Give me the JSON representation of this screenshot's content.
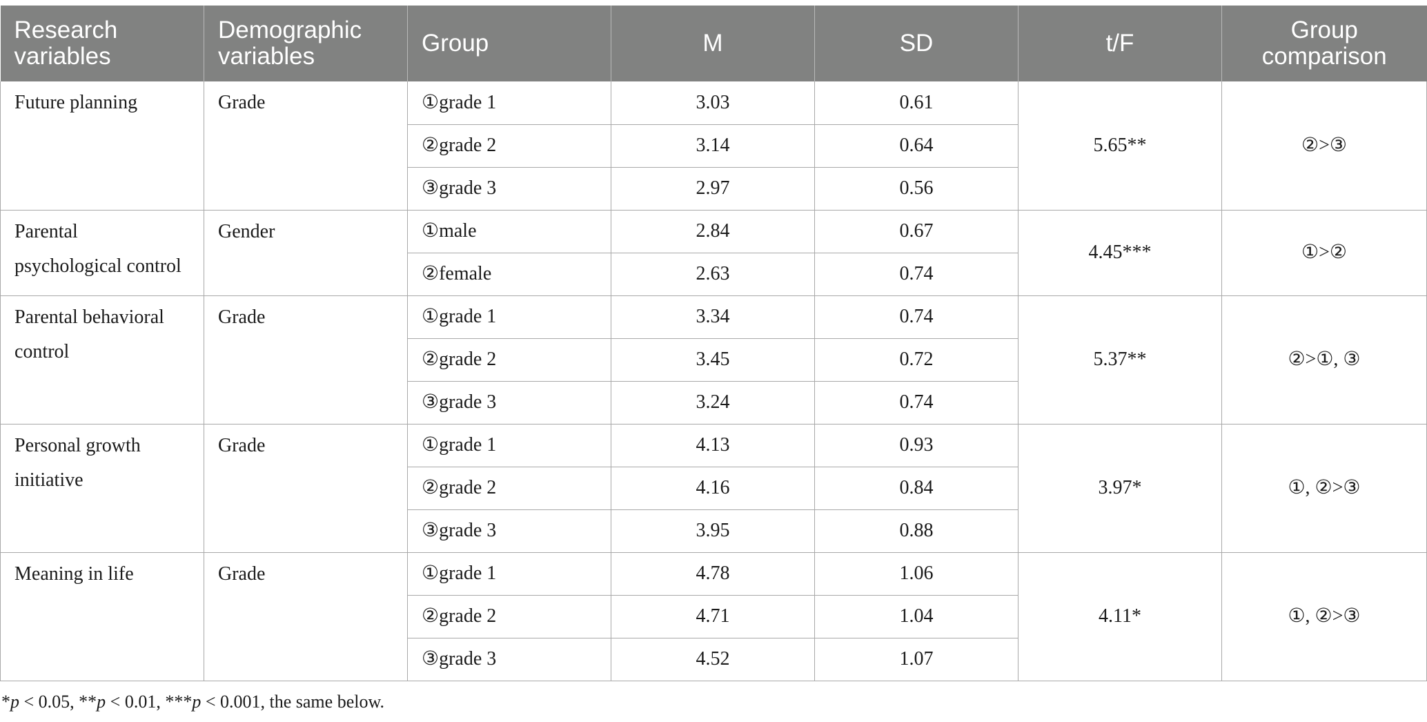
{
  "table": {
    "headers": [
      "Research variables",
      "Demographic variables",
      "Group",
      "M",
      "SD",
      "t/F",
      "Group comparison"
    ],
    "blocks": [
      {
        "variable": "Future planning",
        "demographic": "Grade",
        "tf": "5.65**",
        "comparison": "②>③",
        "rows": [
          {
            "group": "①grade 1",
            "m": "3.03",
            "sd": "0.61"
          },
          {
            "group": "②grade 2",
            "m": "3.14",
            "sd": "0.64"
          },
          {
            "group": "③grade 3",
            "m": "2.97",
            "sd": "0.56"
          }
        ]
      },
      {
        "variable": "Parental psychological control",
        "demographic": "Gender",
        "tf": "4.45***",
        "comparison": "①>②",
        "rows": [
          {
            "group": "①male",
            "m": "2.84",
            "sd": "0.67"
          },
          {
            "group": "②female",
            "m": "2.63",
            "sd": "0.74"
          }
        ]
      },
      {
        "variable": "Parental behavioral control",
        "demographic": "Grade",
        "tf": "5.37**",
        "comparison": "②>①, ③",
        "rows": [
          {
            "group": "①grade 1",
            "m": "3.34",
            "sd": "0.74"
          },
          {
            "group": "②grade 2",
            "m": "3.45",
            "sd": "0.72"
          },
          {
            "group": "③grade 3",
            "m": "3.24",
            "sd": "0.74"
          }
        ]
      },
      {
        "variable": "Personal growth initiative",
        "demographic": "Grade",
        "tf": "3.97*",
        "comparison": "①, ②>③",
        "rows": [
          {
            "group": "①grade 1",
            "m": "4.13",
            "sd": "0.93"
          },
          {
            "group": "②grade 2",
            "m": "4.16",
            "sd": "0.84"
          },
          {
            "group": "③grade 3",
            "m": "3.95",
            "sd": "0.88"
          }
        ]
      },
      {
        "variable": "Meaning in life",
        "demographic": "Grade",
        "tf": "4.11*",
        "comparison": "①, ②>③",
        "rows": [
          {
            "group": "①grade 1",
            "m": "4.78",
            "sd": "1.06"
          },
          {
            "group": "②grade 2",
            "m": "4.71",
            "sd": "1.04"
          },
          {
            "group": "③grade 3",
            "m": "4.52",
            "sd": "1.07"
          }
        ]
      }
    ]
  },
  "footnote": {
    "parts": [
      {
        "text": "*",
        "italic": false
      },
      {
        "text": "p",
        "italic": true
      },
      {
        "text": " < 0.05, **",
        "italic": false
      },
      {
        "text": "p",
        "italic": true
      },
      {
        "text": " < 0.01, ***",
        "italic": false
      },
      {
        "text": "p",
        "italic": true
      },
      {
        "text": " < 0.001, the same below.",
        "italic": false
      }
    ]
  }
}
